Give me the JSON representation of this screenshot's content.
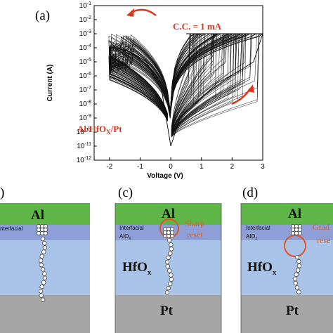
{
  "figure": {
    "panel_a_label": "(a)",
    "panel_b_label": ")",
    "panel_c_label": "(c)",
    "panel_d_label": "(d)",
    "cc_annotation": "C.C. = 1 mA",
    "device_annotation": "Al/HfO",
    "device_sub": "X",
    "device_tail": "/Pt"
  },
  "chart_data": {
    "type": "line",
    "title": "",
    "xlabel": "Voltage (V)",
    "ylabel": "Current (A)",
    "xlim": [
      -2.5,
      3.0
    ],
    "ylim_log10": [
      -12,
      -1
    ],
    "y_scale": "log",
    "x_ticks": [
      "-2",
      "-1",
      "0",
      "1",
      "2",
      "3"
    ],
    "y_tick_exponents": [
      "-1",
      "-2",
      "-3",
      "-4",
      "-5",
      "-6",
      "-7",
      "-8",
      "-9",
      "-10",
      "-11",
      "-12"
    ],
    "compliance_current_A": 0.001,
    "series_representative": [
      {
        "x": [
          0,
          0.3,
          0.8,
          1.5,
          2.2,
          2.7,
          3.0
        ],
        "y": [
          1e-11,
          1e-09,
          1e-08,
          3e-07,
          2e-06,
          1e-05,
          0.001
        ]
      },
      {
        "x": [
          0,
          -0.3,
          -0.8,
          -1.3,
          -1.8,
          -2.0
        ],
        "y": [
          1e-11,
          1e-07,
          1e-05,
          5e-05,
          0.0001,
          0.0003
        ]
      }
    ]
  },
  "panels": {
    "c": {
      "top": "Al",
      "interfacial": "Interfacial",
      "alox": "AlO",
      "alox_sub": "x",
      "bulk": "HfO",
      "bulk_sub": "x",
      "bottom": "Pt",
      "reset_line1": "Sharp",
      "reset_line2": "reset"
    },
    "d": {
      "top": "Al",
      "interfacial": "Interfacial",
      "alox": "AlO",
      "alox_sub": "x",
      "bulk": "HfO",
      "bulk_sub": "x",
      "bottom": "Pt",
      "reset_line1": "Grad",
      "reset_line2": "rese"
    },
    "b": {
      "top": "Al",
      "interfacial": "nterfacial"
    }
  },
  "colors": {
    "al_layer": "#5fb548",
    "interfacial_layer": "#8d9fd6",
    "hfox_layer": "#a9c4e8",
    "pt_layer": "#a7a6a6",
    "accent_red": "#d9361e",
    "reset_orange": "#e0552a"
  }
}
